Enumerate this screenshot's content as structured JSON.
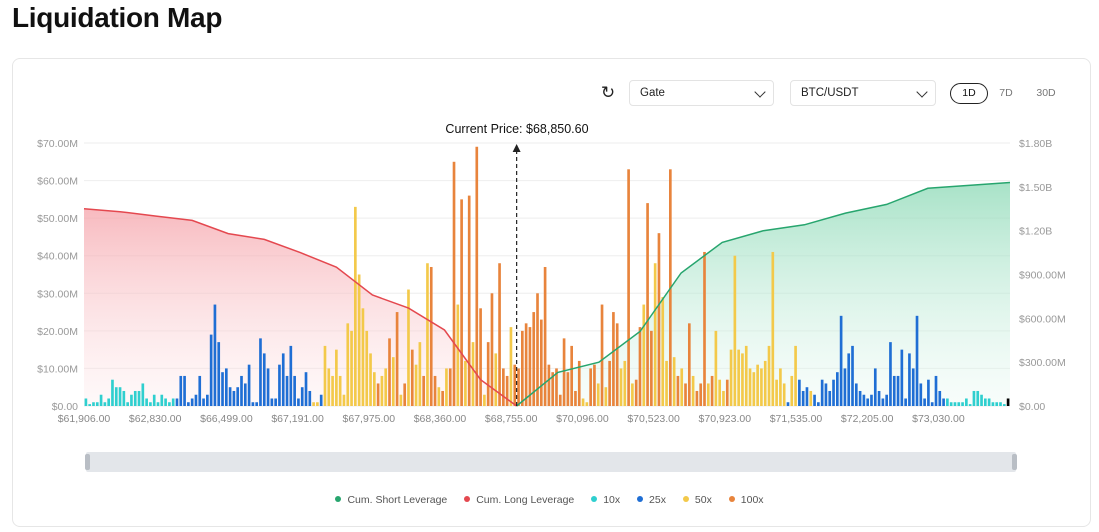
{
  "page": {
    "title": "Liquidation Map"
  },
  "controls": {
    "refresh_icon": "refresh-icon",
    "exchange_select": {
      "value": "Gate"
    },
    "pair_select": {
      "value": "BTC/USDT"
    },
    "ranges": [
      {
        "label": "1D",
        "active": true
      },
      {
        "label": "7D",
        "active": false
      },
      {
        "label": "30D",
        "active": false
      }
    ]
  },
  "colors": {
    "10x": "#2fcfcf",
    "25x": "#1f6ed4",
    "50x": "#f3c94a",
    "100x": "#e8843c",
    "cum_short": "#27a56e",
    "cum_long": "#e4484f"
  },
  "chart_data": {
    "type": "bar",
    "title": "",
    "current_price_label": "Current Price: $68,850.60",
    "left_axis": {
      "ticks": [
        "$0.00",
        "$10.00M",
        "$20.00M",
        "$30.00M",
        "$40.00M",
        "$50.00M",
        "$60.00M",
        "$70.00M"
      ],
      "ylim": [
        0,
        70
      ]
    },
    "right_axis": {
      "ticks": [
        "$0.00",
        "$300.00M",
        "$600.00M",
        "$900.00M",
        "$1.20B",
        "$1.50B",
        "$1.80B"
      ],
      "ylim": [
        0,
        1.8
      ]
    },
    "x_tick_labels": [
      "$61,906.00",
      "$62,830.00",
      "$66,499.00",
      "$67,191.00",
      "$67,975.00",
      "$68,360.00",
      "$68,755.00",
      "$70,096.00",
      "$70,523.00",
      "$70,923.00",
      "$71,535.00",
      "$72,205.00",
      "$73,030.00"
    ],
    "grid": true,
    "legend_position": "bottom",
    "legend": [
      "Cum. Short Leverage",
      "Cum. Long Leverage",
      "10x",
      "25x",
      "50x",
      "100x"
    ],
    "bar_units": "USD millions",
    "long_side_bars": {
      "values": [
        2,
        0.5,
        1,
        1,
        3,
        1,
        2,
        7,
        5,
        5,
        4,
        1,
        3,
        4,
        4,
        6,
        2,
        1,
        3,
        1,
        3,
        2,
        1,
        2,
        2,
        8,
        8,
        1,
        2,
        3,
        8,
        2,
        3,
        19,
        27,
        17,
        9,
        10,
        5,
        4,
        5,
        8,
        6,
        11,
        1,
        1,
        18,
        14,
        10,
        2,
        2,
        11,
        14,
        8,
        16,
        8,
        2,
        5,
        9,
        4,
        1,
        1,
        3,
        16,
        10,
        8,
        15,
        8,
        3,
        22,
        20,
        53,
        35,
        26,
        20,
        14,
        9,
        6,
        8,
        10,
        18,
        13,
        25,
        3,
        6,
        31,
        15,
        11,
        17,
        8,
        38,
        37,
        8,
        5,
        4,
        10,
        10,
        65,
        27,
        55,
        12,
        56,
        17,
        69,
        26,
        3,
        17,
        30,
        14,
        38,
        10,
        8,
        21,
        11
      ],
      "leverage": [
        "10x",
        "10x",
        "10x",
        "10x",
        "10x",
        "10x",
        "10x",
        "10x",
        "10x",
        "10x",
        "10x",
        "10x",
        "10x",
        "10x",
        "10x",
        "10x",
        "10x",
        "10x",
        "10x",
        "10x",
        "10x",
        "10x",
        "10x",
        "10x",
        "25x",
        "25x",
        "25x",
        "25x",
        "25x",
        "25x",
        "25x",
        "25x",
        "25x",
        "25x",
        "25x",
        "25x",
        "25x",
        "25x",
        "25x",
        "25x",
        "25x",
        "25x",
        "25x",
        "25x",
        "25x",
        "25x",
        "25x",
        "25x",
        "25x",
        "25x",
        "25x",
        "25x",
        "25x",
        "25x",
        "25x",
        "25x",
        "25x",
        "25x",
        "25x",
        "25x",
        "50x",
        "50x",
        "25x",
        "50x",
        "50x",
        "50x",
        "50x",
        "50x",
        "50x",
        "50x",
        "50x",
        "50x",
        "50x",
        "50x",
        "50x",
        "50x",
        "50x",
        "100x",
        "50x",
        "50x",
        "100x",
        "50x",
        "100x",
        "50x",
        "100x",
        "50x",
        "100x",
        "50x",
        "50x",
        "100x",
        "50x",
        "100x",
        "100x",
        "50x",
        "100x",
        "50x",
        "100x",
        "100x",
        "50x",
        "100x",
        "50x",
        "100x",
        "50x",
        "100x",
        "100x",
        "50x",
        "100x",
        "100x",
        "50x",
        "100x",
        "100x",
        "100x",
        "50x",
        "100x"
      ]
    },
    "short_side_bars": {
      "values": [
        10,
        20,
        22,
        21,
        25,
        30,
        23,
        37,
        11,
        9,
        10,
        3,
        18,
        9,
        16,
        4,
        12,
        2,
        1,
        10,
        11,
        6,
        27,
        5,
        12,
        25,
        22,
        10,
        12,
        63,
        6,
        7,
        21,
        27,
        54,
        20,
        38,
        46,
        29,
        12,
        63,
        13,
        8,
        10,
        6,
        22,
        8,
        4,
        6,
        41,
        6,
        8,
        20,
        7,
        4,
        7,
        15,
        40,
        15,
        14,
        16,
        10,
        9,
        11,
        10,
        12,
        16,
        41,
        7,
        10,
        6,
        1,
        8,
        16,
        7,
        4,
        5,
        4,
        3,
        1,
        7,
        6,
        4,
        7,
        9,
        24,
        10,
        14,
        16,
        6,
        4,
        3,
        2,
        3,
        10,
        4,
        2,
        3,
        17,
        8,
        8,
        15,
        2,
        14,
        10,
        24,
        6,
        2,
        7,
        1,
        8,
        4,
        2,
        2,
        1,
        1,
        1,
        1,
        2,
        0.5,
        4,
        4,
        3,
        2,
        2,
        1,
        1,
        1,
        0.5,
        2
      ],
      "leverage": [
        "100x",
        "100x",
        "100x",
        "100x",
        "100x",
        "100x",
        "100x",
        "100x",
        "100x",
        "100x",
        "100x",
        "100x",
        "100x",
        "100x",
        "100x",
        "100x",
        "100x",
        "50x",
        "50x",
        "100x",
        "100x",
        "50x",
        "100x",
        "50x",
        "100x",
        "100x",
        "100x",
        "50x",
        "50x",
        "100x",
        "50x",
        "100x",
        "100x",
        "50x",
        "100x",
        "100x",
        "50x",
        "100x",
        "50x",
        "50x",
        "100x",
        "50x",
        "100x",
        "50x",
        "100x",
        "100x",
        "50x",
        "100x",
        "100x",
        "100x",
        "50x",
        "100x",
        "50x",
        "50x",
        "50x",
        "100x",
        "50x",
        "50x",
        "50x",
        "50x",
        "50x",
        "50x",
        "50x",
        "50x",
        "50x",
        "50x",
        "50x",
        "50x",
        "50x",
        "50x",
        "50x",
        "25x",
        "50x",
        "50x",
        "25x",
        "25x",
        "25x",
        "50x",
        "25x",
        "25x",
        "25x",
        "25x",
        "25x",
        "25x",
        "25x",
        "25x",
        "25x",
        "25x",
        "25x",
        "25x",
        "25x",
        "25x",
        "25x",
        "25x",
        "25x",
        "25x",
        "25x",
        "25x",
        "25x",
        "25x",
        "25x",
        "25x",
        "25x",
        "25x",
        "25x",
        "25x",
        "25x",
        "25x",
        "25x",
        "25x",
        "25x",
        "25x",
        "25x",
        "10x",
        "10x",
        "10x",
        "10x",
        "10x",
        "10x",
        "10x",
        "10x",
        "10x",
        "10x",
        "10x",
        "10x",
        "10x",
        "10x",
        "10x",
        "10x"
      ]
    },
    "series": [
      {
        "name": "Cum. Long Leverage",
        "axis": "right",
        "units": "USD billions",
        "values": [
          1.35,
          1.33,
          1.3,
          1.27,
          1.18,
          1.14,
          1.05,
          0.95,
          0.76,
          0.67,
          0.52,
          0.18,
          0
        ]
      },
      {
        "name": "Cum. Short Leverage",
        "axis": "right",
        "units": "USD billions",
        "values": [
          0,
          0.23,
          0.3,
          0.51,
          0.91,
          1.12,
          1.2,
          1.24,
          1.32,
          1.38,
          1.49,
          1.51,
          1.53
        ]
      }
    ]
  }
}
